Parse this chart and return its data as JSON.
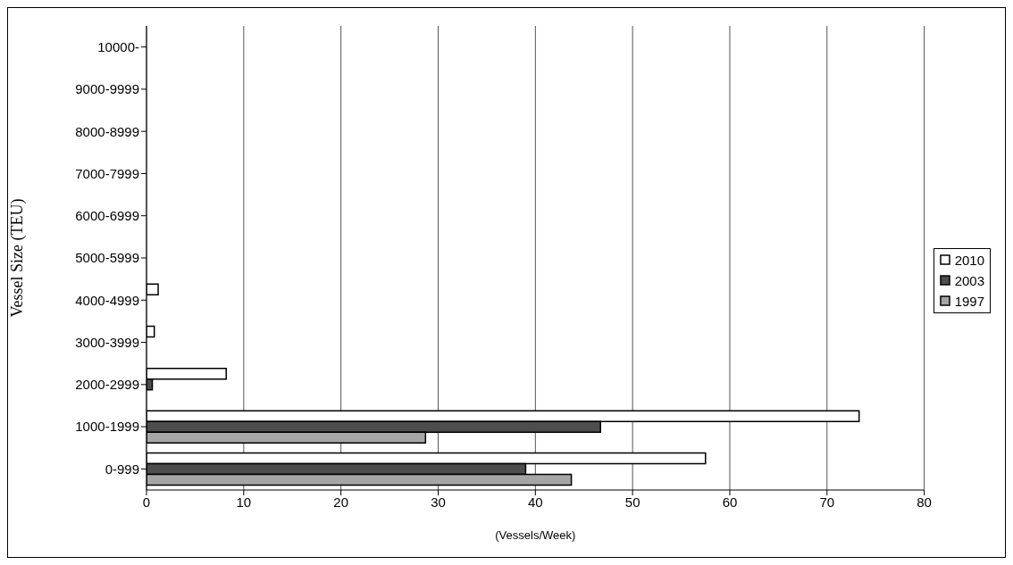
{
  "chart_data": {
    "type": "bar",
    "orientation": "horizontal",
    "ylabel": "Vessel Size (TEU)",
    "xlabel": "(Vessels/Week)",
    "categories": [
      "10000-",
      "9000-9999",
      "8000-8999",
      "7000-7999",
      "6000-6999",
      "5000-5999",
      "4000-4999",
      "3000-3999",
      "2000-2999",
      "1000-1999",
      "0-999"
    ],
    "series": [
      {
        "name": "2010",
        "color": "#ffffff",
        "values": [
          0,
          0,
          0,
          0,
          0,
          0,
          1.2,
          0.8,
          8.2,
          73.3,
          57.5
        ]
      },
      {
        "name": "2003",
        "color": "#4d4d4d",
        "values": [
          0,
          0,
          0,
          0,
          0,
          0,
          0,
          0,
          0.6,
          46.7,
          39.0
        ]
      },
      {
        "name": "1997",
        "color": "#a6a6a6",
        "values": [
          0,
          0,
          0,
          0,
          0,
          0,
          0,
          0,
          0,
          28.7,
          43.7
        ]
      }
    ],
    "xlim": [
      0,
      80
    ],
    "xticks": [
      0,
      10,
      20,
      30,
      40,
      50,
      60,
      70,
      80
    ],
    "grid": "x",
    "legend": "right"
  }
}
